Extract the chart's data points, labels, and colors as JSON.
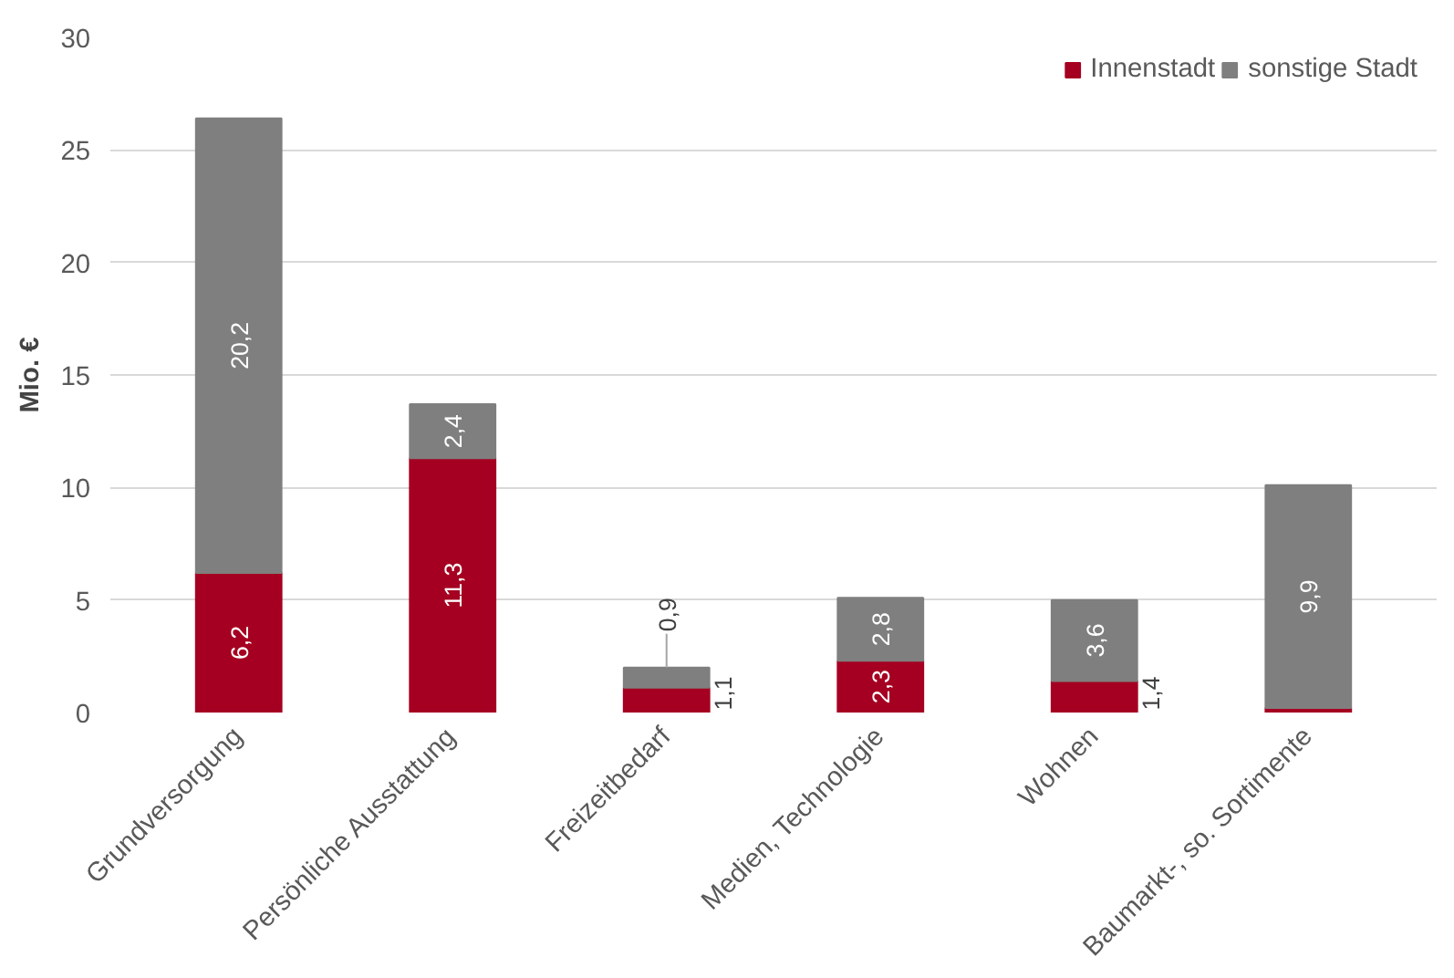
{
  "chart_data": {
    "type": "bar",
    "stacked": true,
    "ylabel": "Mio. €",
    "categories": [
      "Grundversorgung",
      "Persönliche Ausstattung",
      "Freizeitbedarf",
      "Medien, Technologie",
      "Wohnen",
      "Baumarkt-, so. Sortimente"
    ],
    "series": [
      {
        "name": "Innenstadt",
        "color": "#a50021",
        "values": [
          6.2,
          11.3,
          1.1,
          2.3,
          1.4,
          0.2
        ],
        "value_labels": [
          "6,2",
          "11,3",
          "1,1",
          "2,3",
          "1,4",
          null
        ]
      },
      {
        "name": "sonstige Stadt",
        "color": "#7f7f7f",
        "values": [
          20.2,
          2.4,
          0.9,
          2.8,
          3.6,
          9.9
        ],
        "value_labels": [
          "20,2",
          "2,4",
          "0,9",
          "2,8",
          "3,6",
          "9,9"
        ]
      }
    ],
    "ylim": [
      0,
      30
    ],
    "yticks": [
      0,
      5,
      10,
      15,
      20,
      25,
      30
    ],
    "grid": "y",
    "legend": "top right"
  }
}
